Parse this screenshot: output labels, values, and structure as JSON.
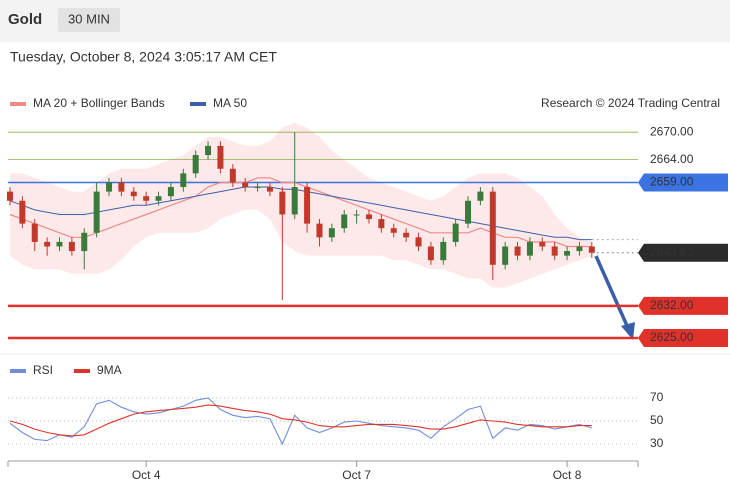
{
  "chart_data": {
    "type": "candlestick",
    "title": "Gold",
    "timeframe": "30 MIN",
    "subtitle": "Tuesday, October 8, 2024 3:05:17 AM CET",
    "source": "Research © 2024 Trading Central",
    "xlim": [
      -0.16,
      50.73
    ],
    "xticks": [
      {
        "value": 11,
        "label": "Oct 4"
      },
      {
        "value": 28,
        "label": "Oct 7"
      },
      {
        "value": 45,
        "label": "Oct 8"
      }
    ],
    "ylim": [
      2622.8,
      2673.1
    ],
    "up_color": "#3a7a3a",
    "down_color": "#c0392b",
    "candles": {
      "open": [
        2657,
        2655,
        2650,
        2646,
        2645,
        2646,
        2644,
        2648,
        2657,
        2659,
        2657,
        2656,
        2655,
        2656,
        2658,
        2661,
        2665,
        2667,
        2662,
        2659,
        2658,
        2658,
        2657,
        2652,
        2658,
        2650,
        2647,
        2649,
        2652,
        2652,
        2651,
        2649,
        2648,
        2647,
        2645,
        2642,
        2646,
        2650,
        2655,
        2657,
        2641,
        2645,
        2643,
        2646,
        2645,
        2643,
        2644,
        2645
      ],
      "high": [
        2658,
        2656,
        2651,
        2647,
        2647,
        2647,
        2649,
        2659,
        2660,
        2660,
        2658,
        2657,
        2657,
        2659,
        2662,
        2666,
        2668,
        2668,
        2663,
        2660,
        2659,
        2659,
        2658,
        2670,
        2659,
        2651,
        2650,
        2653,
        2653,
        2653,
        2652,
        2650,
        2649,
        2648,
        2646,
        2647,
        2651,
        2656,
        2658,
        2658,
        2646,
        2646,
        2647,
        2647,
        2646,
        2645,
        2646,
        2646
      ],
      "low": [
        2654,
        2649,
        2644,
        2643,
        2644,
        2643,
        2640,
        2647,
        2656,
        2656,
        2655,
        2654,
        2654,
        2655,
        2657,
        2660,
        2664,
        2661,
        2658,
        2657,
        2657,
        2656,
        2633.3,
        2651,
        2648,
        2645,
        2646,
        2648,
        2650,
        2650,
        2648,
        2647,
        2646,
        2644,
        2641,
        2641,
        2645,
        2649,
        2654,
        2637.7,
        2640,
        2642,
        2642,
        2644,
        2642,
        2642,
        2643,
        2642.5
      ],
      "close": [
        2655,
        2650,
        2646,
        2645,
        2646,
        2644,
        2648,
        2657,
        2659,
        2657,
        2656,
        2655,
        2656,
        2658,
        2661,
        2665,
        2667,
        2662,
        2659,
        2658,
        2658,
        2657,
        2652,
        2658,
        2650,
        2647,
        2649,
        2652,
        2652,
        2651,
        2649,
        2648,
        2647,
        2645,
        2642,
        2646,
        2650,
        2655,
        2657,
        2641,
        2645,
        2643,
        2646,
        2645,
        2643,
        2644,
        2645,
        2643.62
      ]
    },
    "series": [
      {
        "name": "MA 20 + Bollinger Bands",
        "color": "#f08a8a",
        "band_color": "#fde3e3",
        "values": [
          2652,
          2651,
          2650,
          2649,
          2648,
          2647,
          2647,
          2648,
          2649,
          2650,
          2651,
          2652,
          2653,
          2654,
          2655,
          2656,
          2658,
          2659,
          2659,
          2659,
          2660,
          2660,
          2659,
          2659,
          2658,
          2657,
          2656,
          2655,
          2654,
          2653,
          2652,
          2651,
          2650,
          2649,
          2648,
          2648,
          2648,
          2648,
          2649,
          2648,
          2647,
          2647,
          2646,
          2646,
          2646,
          2645,
          2645,
          2645
        ],
        "upper": [
          2661,
          2661,
          2660,
          2659,
          2658,
          2657,
          2657,
          2659,
          2661,
          2662,
          2662,
          2662,
          2663,
          2664,
          2665,
          2667,
          2669,
          2669,
          2668,
          2667,
          2667,
          2668,
          2671,
          2672,
          2671,
          2669,
          2666,
          2664,
          2662,
          2660,
          2659,
          2658,
          2657,
          2656,
          2655,
          2656,
          2658,
          2660,
          2661,
          2661,
          2661,
          2660,
          2658,
          2656,
          2652,
          2649,
          2647,
          2646
        ],
        "lower": [
          2643,
          2641,
          2640,
          2640,
          2640,
          2639,
          2639,
          2639,
          2640,
          2642,
          2645,
          2647,
          2648,
          2648,
          2648,
          2648,
          2649,
          2651,
          2652,
          2653,
          2653,
          2651,
          2646,
          2644,
          2643,
          2643,
          2643,
          2643,
          2643,
          2643,
          2643,
          2642,
          2642,
          2641,
          2640,
          2640,
          2639,
          2638,
          2638,
          2636,
          2636,
          2637,
          2638,
          2639,
          2640,
          2641,
          2642,
          2643
        ]
      },
      {
        "name": "MA 50",
        "color": "#3f5fa8",
        "values": [
          2655,
          2654,
          2653,
          2652.5,
          2652,
          2652,
          2652,
          2652.5,
          2653,
          2653.5,
          2654,
          2654,
          2654.5,
          2655,
          2655.5,
          2656,
          2656.5,
          2657,
          2657.5,
          2658,
          2658,
          2658,
          2657.5,
          2657.5,
          2657,
          2656.5,
          2656,
          2655.5,
          2655,
          2654.5,
          2654,
          2653.5,
          2653,
          2652.5,
          2652,
          2651.5,
          2651,
          2650.5,
          2650,
          2649.5,
          2649,
          2648.5,
          2648,
          2647.5,
          2647,
          2647,
          2646.5,
          2646.5
        ]
      }
    ],
    "levels": [
      {
        "value": 2670,
        "label": "2670.00",
        "color": "#8ab04a",
        "style": "text"
      },
      {
        "value": 2664,
        "label": "2664.00",
        "color": "#8ab04a",
        "style": "text"
      },
      {
        "value": 2659,
        "label": "2659.00",
        "color": "#3b73e0",
        "style": "box"
      },
      {
        "value": 2632,
        "label": "2632.00",
        "color": "#e0322b",
        "style": "box"
      },
      {
        "value": 2625,
        "label": "2625.00",
        "color": "#e0322b",
        "style": "box"
      }
    ],
    "last_price": {
      "value": 2643.62,
      "label": "2643.62",
      "color": "#2b2b2b"
    },
    "rsi": {
      "ylim": [
        20,
        95
      ],
      "yticks": [
        70,
        50,
        30
      ],
      "series": [
        {
          "name": "RSI",
          "color": "#6f8fd8",
          "values": [
            48,
            40,
            34,
            33,
            38,
            36,
            45,
            65,
            68,
            62,
            58,
            56,
            57,
            60,
            63,
            68,
            70,
            60,
            55,
            53,
            54,
            52,
            30,
            55,
            44,
            40,
            44,
            49,
            50,
            48,
            46,
            45,
            44,
            42,
            35,
            45,
            52,
            60,
            63,
            35,
            44,
            42,
            47,
            46,
            43,
            45,
            47,
            44
          ]
        },
        {
          "name": "9MA",
          "color": "#e0322b",
          "values": [
            50,
            47,
            43,
            40,
            38,
            37,
            38,
            43,
            48,
            52,
            56,
            58,
            59,
            60,
            61,
            62,
            64,
            63,
            61,
            59,
            58,
            56,
            52,
            51,
            49,
            46,
            45,
            45,
            46,
            47,
            47,
            47,
            46,
            45,
            43,
            43,
            45,
            48,
            51,
            50,
            49,
            47,
            46,
            45,
            45,
            45,
            46,
            46
          ]
        }
      ]
    }
  }
}
